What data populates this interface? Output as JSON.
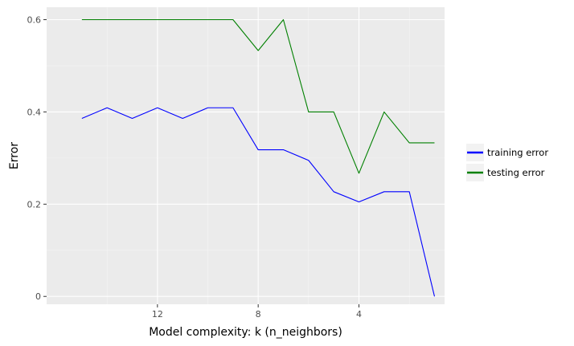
{
  "chart_data": {
    "type": "line",
    "xlabel": "Model complexity: k (n_neighbors)",
    "ylabel": "Error",
    "x_reversed": true,
    "xlim": [
      16.4,
      0.6
    ],
    "ylim": [
      -0.017,
      0.627
    ],
    "x_ticks": [
      12,
      8,
      4
    ],
    "x_tick_labels": [
      "12",
      "8",
      "4"
    ],
    "y_ticks": [
      0,
      0.2,
      0.4,
      0.6
    ],
    "y_tick_labels": [
      "0",
      "0.2",
      "0.4",
      "0.6"
    ],
    "grid": true,
    "legend_position": "right",
    "x": [
      15,
      14,
      13,
      12,
      11,
      10,
      9,
      8,
      7,
      6,
      5,
      4,
      3,
      2,
      1
    ],
    "series": [
      {
        "name": "training error",
        "color": "#0000ff",
        "values": [
          0.386,
          0.409,
          0.386,
          0.409,
          0.386,
          0.409,
          0.409,
          0.318,
          0.318,
          0.295,
          0.227,
          0.205,
          0.227,
          0.227,
          0.0
        ]
      },
      {
        "name": "testing error",
        "color": "#008000",
        "values": [
          0.6,
          0.6,
          0.6,
          0.6,
          0.6,
          0.6,
          0.6,
          0.533,
          0.6,
          0.4,
          0.4,
          0.267,
          0.4,
          0.333,
          0.333
        ]
      }
    ]
  }
}
